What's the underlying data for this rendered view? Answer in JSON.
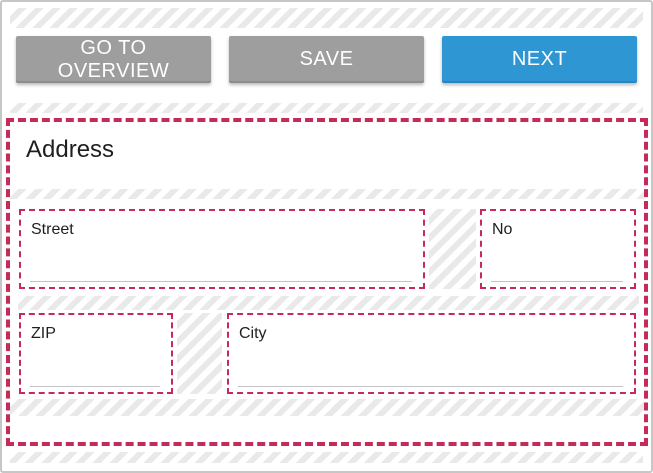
{
  "toolbar": {
    "buttons": [
      {
        "label": "GO TO OVERVIEW"
      },
      {
        "label": "SAVE"
      },
      {
        "label": "NEXT"
      }
    ]
  },
  "form": {
    "title": "Address",
    "fields": {
      "street": {
        "label": "Street",
        "value": ""
      },
      "no": {
        "label": "No",
        "value": ""
      },
      "zip": {
        "label": "ZIP",
        "value": ""
      },
      "city": {
        "label": "City",
        "value": ""
      }
    }
  },
  "colors": {
    "dashed_outline": "#c62a58",
    "button_gray": "#9e9e9e",
    "button_blue": "#2e96d2",
    "stripe_gray": "#e9e9e9",
    "text": "#1f1f1f",
    "underline": "#c3c3c3"
  }
}
